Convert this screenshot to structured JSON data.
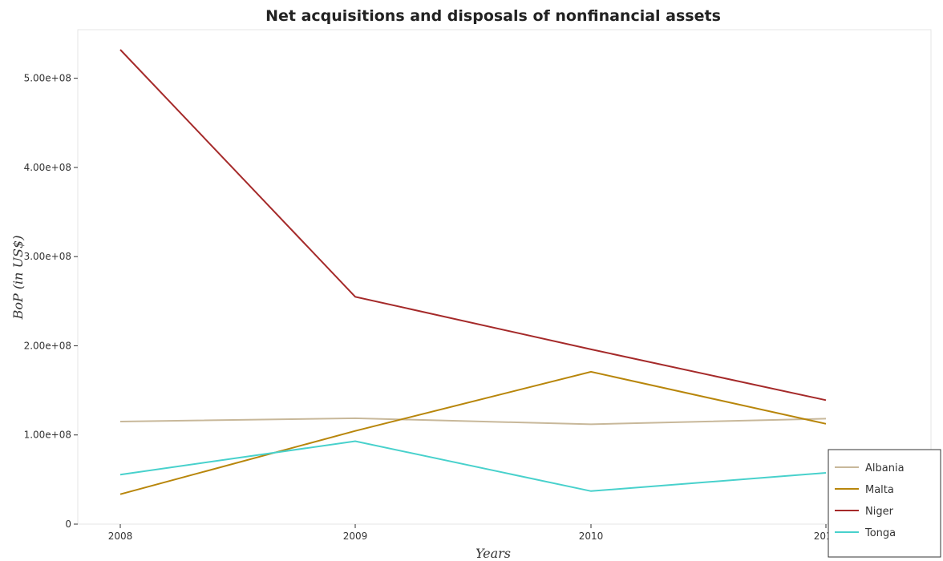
{
  "chart_data": {
    "type": "line",
    "title": "Net acquisitions and disposals of nonfinancial assets",
    "xlabel": "Years",
    "ylabel": "BoP (in US$)",
    "x": [
      "2008",
      "2009",
      "2010",
      "2011"
    ],
    "ylim": [
      0,
      550000000
    ],
    "yticks": [
      0,
      100000000,
      200000000,
      300000000,
      400000000,
      500000000
    ],
    "ytick_labels": [
      "0",
      "1.00e+08",
      "2.00e+08",
      "3.00e+08",
      "4.00e+08",
      "5.00e+08"
    ],
    "grid": false,
    "legend_position": "bottom-right",
    "series": [
      {
        "name": "Albania",
        "color": "#c8b89a",
        "values": [
          115000000,
          118700000,
          112000000,
          118300000
        ]
      },
      {
        "name": "Malta",
        "color": "#b8860b",
        "values": [
          33500000,
          104500000,
          170800000,
          112500000
        ]
      },
      {
        "name": "Niger",
        "color": "#a52a2a",
        "values": [
          532000000,
          255000000,
          196000000,
          139000000
        ]
      },
      {
        "name": "Tonga",
        "color": "#48d1cc",
        "values": [
          55500000,
          93000000,
          37000000,
          57500000
        ]
      }
    ]
  }
}
